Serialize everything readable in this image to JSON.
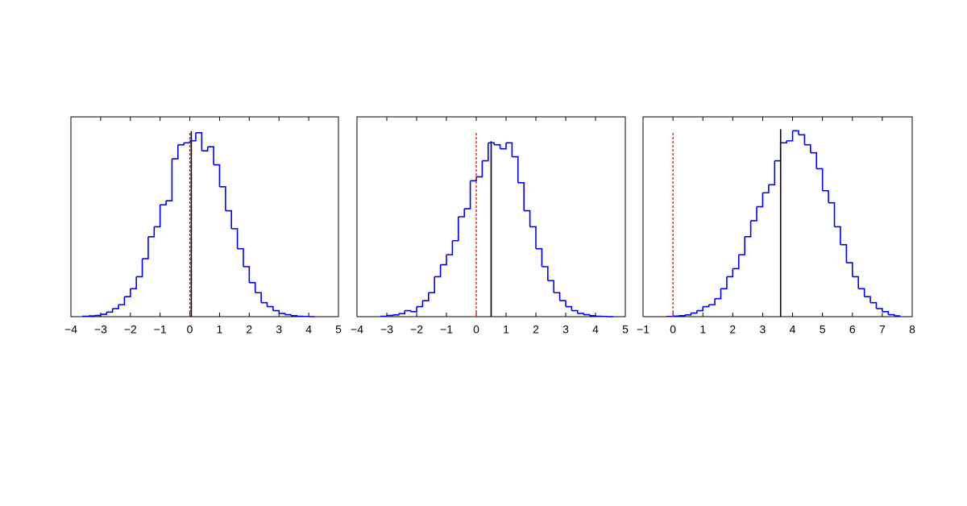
{
  "chart_data": [
    {
      "type": "histogram",
      "color": "#0000ff",
      "bins": [
        -3.6,
        -3.4,
        -3.2,
        -3.0,
        -2.8,
        -2.6,
        -2.4,
        -2.2,
        -2.0,
        -1.8,
        -1.6,
        -1.4,
        -1.2,
        -1.0,
        -0.8,
        -0.6,
        -0.4,
        -0.2,
        0.0,
        0.2,
        0.4,
        0.6,
        0.8,
        1.0,
        1.2,
        1.4,
        1.6,
        1.8,
        2.0,
        2.2,
        2.4,
        2.6,
        2.8,
        3.0,
        3.2,
        3.4,
        3.6,
        3.8,
        4.0,
        4.2
      ],
      "values": [
        0.2,
        0.4,
        0.6,
        1.2,
        2.3,
        4,
        6,
        10,
        14,
        20,
        29,
        40,
        45,
        56,
        58,
        79,
        86,
        87,
        88,
        92,
        83,
        85,
        76,
        65,
        53,
        44,
        34,
        25,
        17,
        12,
        7,
        5,
        3,
        1.6,
        1,
        0.5,
        0.2,
        0.1,
        0
      ],
      "xlim": [
        -4,
        5
      ],
      "xticks": [
        {
          "value": -4,
          "label": "−4"
        },
        {
          "value": -3,
          "label": "−3"
        },
        {
          "value": -2,
          "label": "−2"
        },
        {
          "value": -1,
          "label": "−1"
        },
        0,
        1,
        2,
        3,
        4,
        5
      ],
      "ylim": [
        0,
        100
      ],
      "reference_line": 0,
      "reference_color": "#ff0000",
      "mean_line": 0.05,
      "mean_color": "#000000"
    },
    {
      "type": "histogram",
      "color": "#0000ff",
      "bins": [
        -3.2,
        -3.0,
        -2.8,
        -2.6,
        -2.4,
        -2.2,
        -2.0,
        -1.8,
        -1.6,
        -1.4,
        -1.2,
        -1.0,
        -0.8,
        -0.6,
        -0.4,
        -0.2,
        0.0,
        0.2,
        0.4,
        0.6,
        0.8,
        1.0,
        1.2,
        1.4,
        1.6,
        1.8,
        2.0,
        2.2,
        2.4,
        2.6,
        2.8,
        3.0,
        3.2,
        3.4,
        3.6,
        3.8,
        4.0,
        4.2,
        4.4,
        4.6
      ],
      "values": [
        0.2,
        0.6,
        0.9,
        1.5,
        3,
        2.5,
        5,
        8,
        12,
        20,
        26,
        31,
        38,
        50,
        54,
        68,
        70,
        78,
        87,
        86,
        84,
        87,
        80,
        67,
        53,
        45,
        34,
        25,
        18,
        12,
        8,
        5,
        3,
        1.6,
        1,
        0.5,
        0.2,
        0.1,
        0
      ],
      "xlim": [
        -4,
        5
      ],
      "xticks": [
        {
          "value": -4,
          "label": "−4"
        },
        {
          "value": -3,
          "label": "−3"
        },
        {
          "value": -2,
          "label": "−2"
        },
        {
          "value": -1,
          "label": "−1"
        },
        0,
        1,
        2,
        3,
        4,
        5
      ],
      "ylim": [
        0,
        100
      ],
      "reference_line": 0,
      "reference_color": "#ff0000",
      "mean_line": 0.5,
      "mean_color": "#000000"
    },
    {
      "type": "histogram",
      "color": "#0000ff",
      "bins": [
        -0.2,
        0.0,
        0.2,
        0.4,
        0.6,
        0.8,
        1.0,
        1.2,
        1.4,
        1.6,
        1.8,
        2.0,
        2.2,
        2.4,
        2.6,
        2.8,
        3.0,
        3.2,
        3.4,
        3.6,
        3.8,
        4.0,
        4.2,
        4.4,
        4.6,
        4.8,
        5.0,
        5.2,
        5.4,
        5.6,
        5.8,
        6.0,
        6.2,
        6.4,
        6.6,
        6.8,
        7.0,
        7.2,
        7.4,
        7.6
      ],
      "values": [
        0.1,
        0.3,
        0.5,
        0.9,
        1.8,
        3,
        5,
        6,
        9,
        14,
        20,
        24,
        31,
        40,
        48,
        55,
        62,
        66,
        78,
        87,
        88,
        93,
        91,
        86,
        82,
        74,
        63,
        57,
        45,
        36,
        27,
        20,
        14,
        10,
        7,
        4,
        2.5,
        1,
        0.4
      ],
      "xlim": [
        -1,
        8
      ],
      "xticks": [
        {
          "value": -1,
          "label": "−1"
        },
        0,
        1,
        2,
        3,
        4,
        5,
        6,
        7,
        8
      ],
      "ylim": [
        0,
        100
      ],
      "reference_line": 0,
      "reference_color": "#ff0000",
      "mean_line": 3.6,
      "mean_color": "#000000"
    }
  ]
}
